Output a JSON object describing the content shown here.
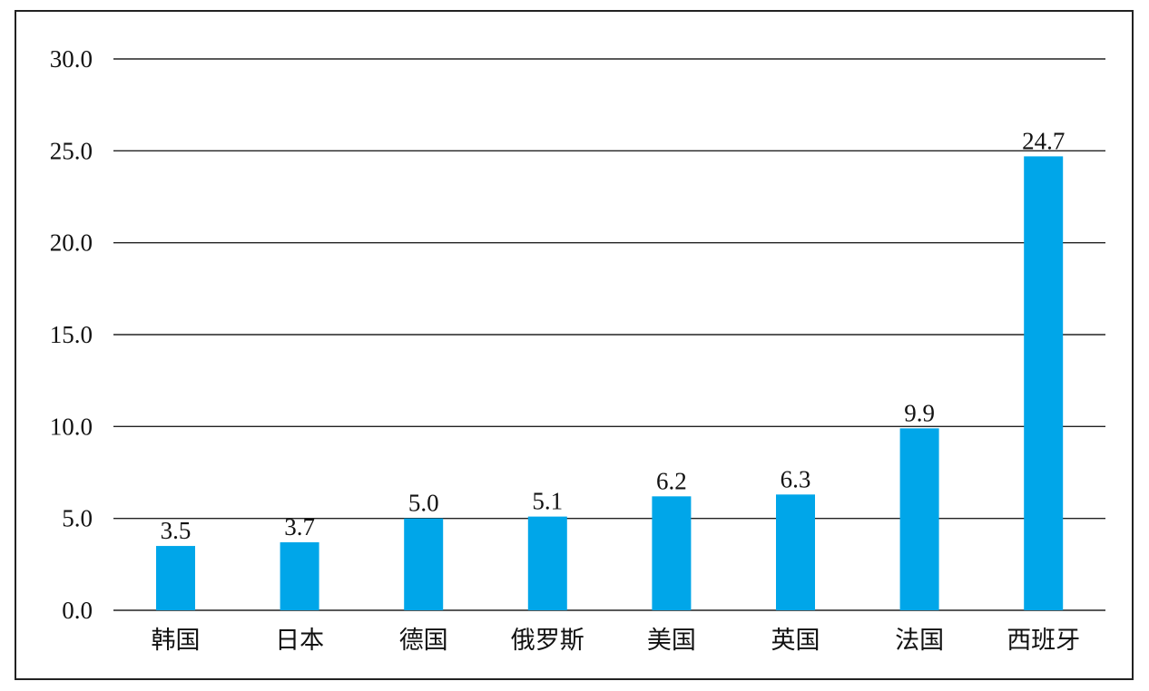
{
  "chart_data": {
    "type": "bar",
    "categories": [
      "韩国",
      "日本",
      "德国",
      "俄罗斯",
      "美国",
      "英国",
      "法国",
      "西班牙"
    ],
    "values": [
      3.5,
      3.7,
      5.0,
      5.1,
      6.2,
      6.3,
      9.9,
      24.7
    ],
    "value_labels": [
      "3.5",
      "3.7",
      "5.0",
      "5.1",
      "6.2",
      "6.3",
      "9.9",
      "24.7"
    ],
    "yticks": [
      0,
      5,
      10,
      15,
      20,
      25,
      30
    ],
    "ytick_labels": [
      "0.0",
      "5.0",
      "10.0",
      "15.0",
      "20.0",
      "25.0",
      "30.0"
    ],
    "ylim": [
      0,
      30
    ],
    "grid": true,
    "legend": "none",
    "bar_color": "#00A6E9",
    "title": "",
    "xlabel": "",
    "ylabel": ""
  }
}
